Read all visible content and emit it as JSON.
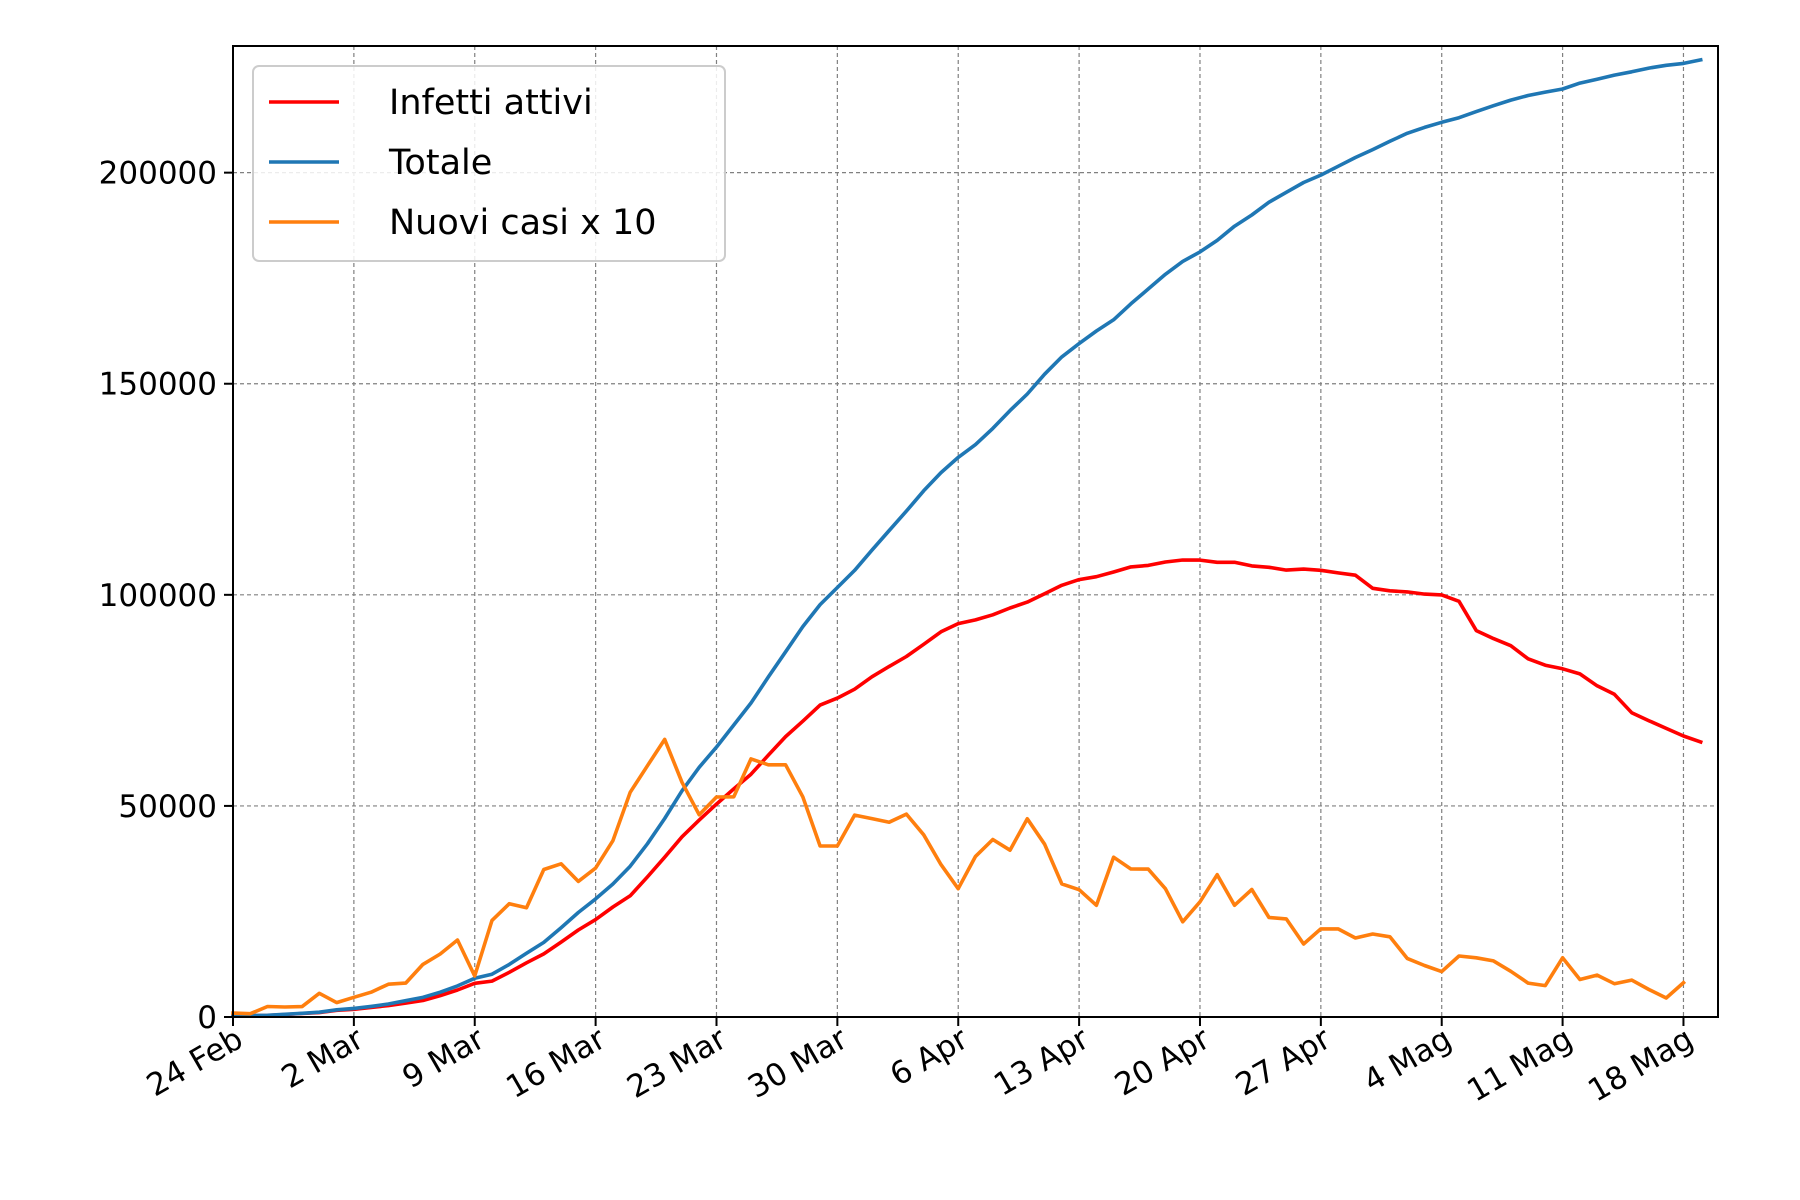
{
  "chart_data": {
    "type": "line",
    "title": "",
    "xlabel": "",
    "ylabel": "",
    "x_type": "date",
    "x_start": "2020-02-24",
    "xlim": [
      "2020-02-24",
      "2020-05-20"
    ],
    "ylim": [
      0,
      230000
    ],
    "grid": true,
    "legend_position": "upper left",
    "x_ticks": [
      {
        "date": "2020-02-24",
        "label": "24 Feb"
      },
      {
        "date": "2020-03-02",
        "label": "2 Mar"
      },
      {
        "date": "2020-03-09",
        "label": "9 Mar"
      },
      {
        "date": "2020-03-16",
        "label": "16 Mar"
      },
      {
        "date": "2020-03-23",
        "label": "23 Mar"
      },
      {
        "date": "2020-03-30",
        "label": "30 Mar"
      },
      {
        "date": "2020-04-06",
        "label": "6 Apr"
      },
      {
        "date": "2020-04-13",
        "label": "13 Apr"
      },
      {
        "date": "2020-04-20",
        "label": "20 Apr"
      },
      {
        "date": "2020-04-27",
        "label": "27 Apr"
      },
      {
        "date": "2020-05-04",
        "label": "4 Mag"
      },
      {
        "date": "2020-05-11",
        "label": "11 Mag"
      },
      {
        "date": "2020-05-18",
        "label": "18 Mag"
      }
    ],
    "y_ticks": [
      {
        "value": 0,
        "label": "0"
      },
      {
        "value": 50000,
        "label": "50000"
      },
      {
        "value": 100000,
        "label": "100000"
      },
      {
        "value": 150000,
        "label": "150000"
      },
      {
        "value": 200000,
        "label": "200000"
      }
    ],
    "series": [
      {
        "name": "Infetti attivi",
        "color": "#ff0000",
        "values": [
          221,
          311,
          385,
          588,
          821,
          1049,
          1577,
          1835,
          2263,
          2706,
          3296,
          3916,
          5061,
          6387,
          7985,
          8514,
          10590,
          12839,
          14955,
          17750,
          20603,
          23073,
          26062,
          28710,
          33190,
          37860,
          42681,
          46638,
          50418,
          54030,
          57521,
          62013,
          66414,
          70065,
          73880,
          75528,
          77635,
          80572,
          83049,
          85388,
          88274,
          91246,
          93187,
          94067,
          95262,
          96877,
          98273,
          100269,
          102253,
          103616,
          104291,
          105418,
          106607,
          106962,
          107771,
          108257,
          108237,
          107709,
          107699,
          106848,
          106527,
          105847,
          106103,
          105813,
          105205,
          104657,
          101551,
          100943,
          100704,
          100179,
          99980,
          98467,
          91528,
          89624,
          87961,
          84842,
          83324,
          82488,
          81266,
          78457,
          76440,
          72070,
          70187,
          68351,
          66553,
          65129
        ],
        "x_step_days": 1
      },
      {
        "name": "Totale",
        "color": "#1f77b4",
        "values": [
          229,
          322,
          400,
          650,
          888,
          1128,
          1694,
          2036,
          2502,
          3089,
          3858,
          4636,
          5883,
          7375,
          9172,
          10149,
          12462,
          15113,
          17660,
          21157,
          24747,
          27980,
          31506,
          35713,
          41035,
          47021,
          53578,
          59138,
          63927,
          69176,
          74386,
          80539,
          86498,
          92472,
          97689,
          101739,
          105792,
          110574,
          115242,
          119827,
          124632,
          128948,
          132547,
          135586,
          139422,
          143626,
          147577,
          152271,
          156363,
          159516,
          162488,
          165155,
          168941,
          172434,
          175925,
          178972,
          181228,
          183957,
          187327,
          189973,
          192994,
          195351,
          197675,
          199414,
          201505,
          203591,
          205463,
          207428,
          209328,
          210717,
          211938,
          213013,
          214457,
          215858,
          217185,
          218268,
          219070,
          219814,
          221216,
          222104,
          223096,
          223885,
          224760,
          225435,
          225886,
          226699
        ],
        "x_step_days": 1
      },
      {
        "name": "Nuovi casi x 10",
        "color": "#ff7f0e",
        "values": [
          930,
          780,
          2490,
          2380,
          2460,
          5610,
          3420,
          4660,
          5870,
          7780,
          8030,
          12470,
          14920,
          18240,
          9710,
          22870,
          26840,
          25860,
          34940,
          36280,
          32130,
          35260,
          41770,
          53220,
          59490,
          65760,
          55600,
          47890,
          52100,
          52170,
          61140,
          59740,
          59750,
          52170,
          40500,
          40530,
          47820,
          46990,
          46140,
          48050,
          43160,
          36100,
          30390,
          38050,
          42040,
          39510,
          46940,
          40920,
          31530,
          30150,
          26460,
          37860,
          35060,
          35030,
          30390,
          22560,
          27290,
          33700,
          26460,
          30210,
          23570,
          23240,
          17290,
          20860,
          20870,
          18720,
          19650,
          18990,
          13890,
          12210,
          10750,
          14440,
          14020,
          13280,
          10830,
          8020,
          7440,
          14020,
          8880,
          9920,
          7890,
          8750,
          6510,
          4510,
          8130
        ],
        "x_step_days": 1
      }
    ]
  }
}
